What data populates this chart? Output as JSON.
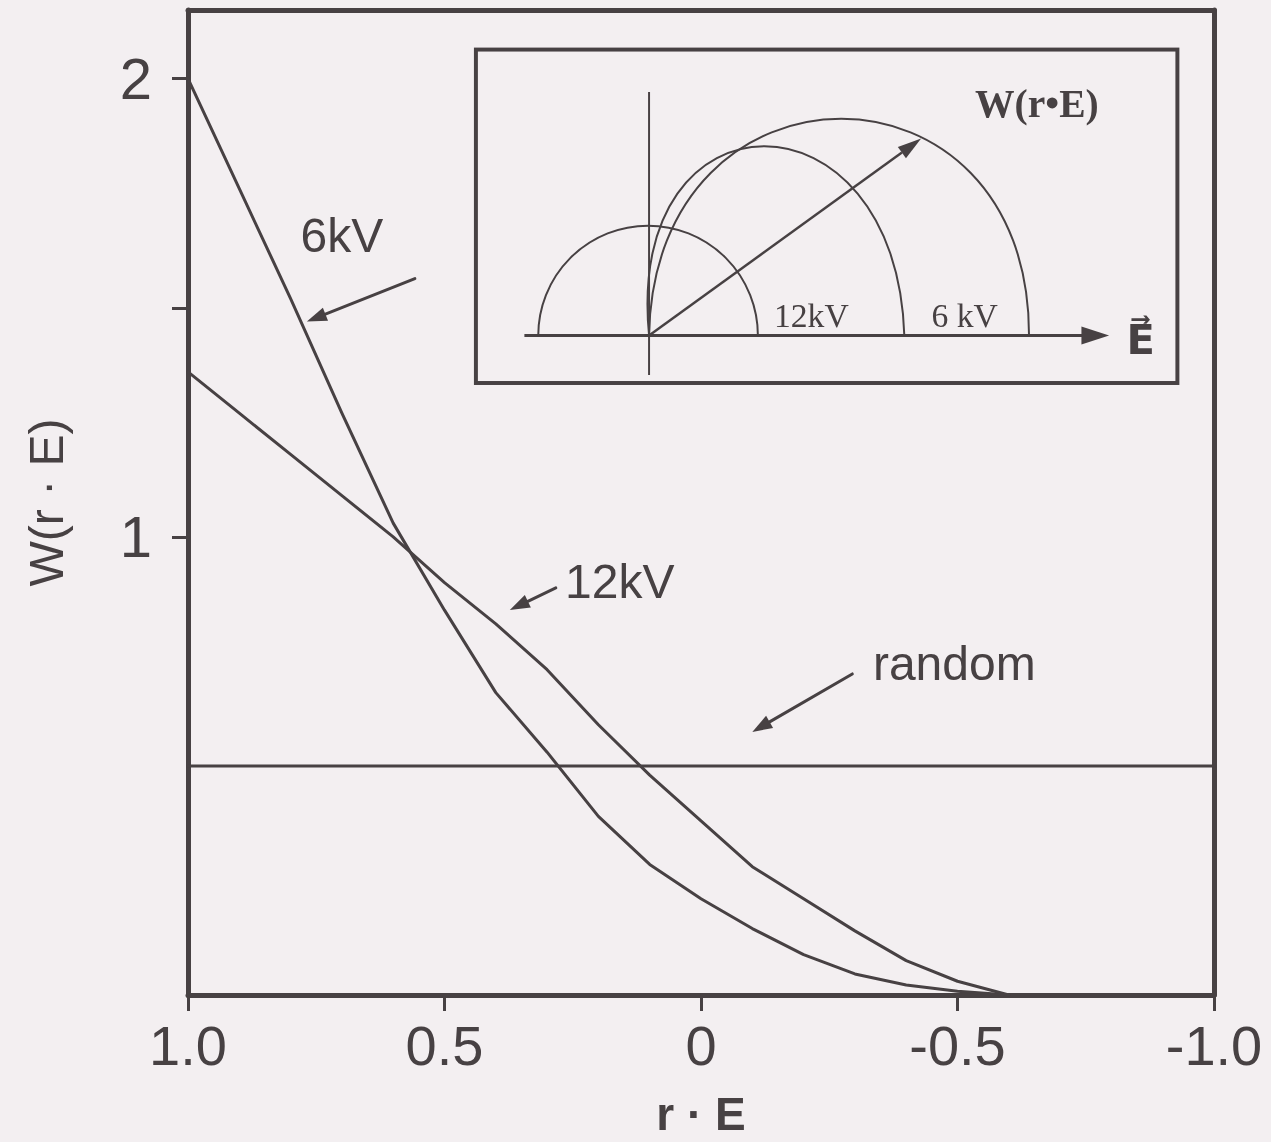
{
  "chart_data": {
    "type": "line",
    "xlabel": "r · E",
    "ylabel": "W(r · E)",
    "annotations": [
      "W(r•E)",
      "12kV",
      "6 kV",
      "E⃗"
    ],
    "x": [
      1.0,
      0.9,
      0.8,
      0.7,
      0.6,
      0.5,
      0.4,
      0.3,
      0.2,
      0.1,
      0,
      -0.1,
      -0.2,
      -0.3,
      -0.4,
      -0.5,
      -0.6
    ],
    "series": [
      {
        "name": "6kV",
        "color": "#474143",
        "values": [
          2.0,
          1.76,
          1.52,
          1.27,
          1.03,
          0.84,
          0.66,
          0.53,
          0.39,
          0.285,
          0.21,
          0.145,
          0.088,
          0.046,
          0.022,
          0.008,
          0
        ]
      },
      {
        "name": "12kV",
        "color": "#474143",
        "values": [
          1.36,
          1.27,
          1.18,
          1.09,
          1.0,
          0.9,
          0.81,
          0.71,
          0.59,
          0.48,
          0.38,
          0.28,
          0.21,
          0.14,
          0.075,
          0.03,
          0
        ]
      },
      {
        "name": "random",
        "color": "#474143",
        "x": [
          1,
          -1
        ],
        "values": [
          0.5,
          0.5
        ]
      }
    ],
    "xlim": [
      1,
      -1
    ],
    "ylim": [
      0,
      2.15
    ],
    "xticks": [
      {
        "value": 1,
        "label": "1.0"
      },
      0.5,
      0,
      -0.5,
      {
        "value": -1,
        "label": "-1.0"
      }
    ],
    "yticks": [
      1,
      {
        "value": 1.5,
        "label": null
      },
      2
    ],
    "marker": "none",
    "line_style": "solid"
  }
}
